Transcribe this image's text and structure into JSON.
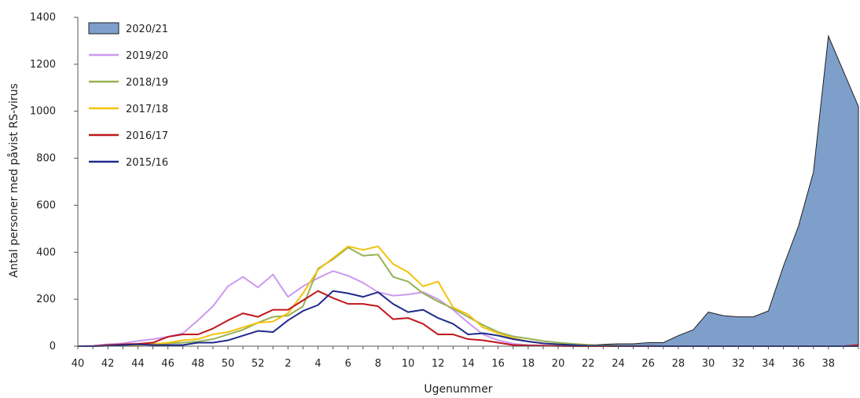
{
  "chart_data": {
    "type": "line",
    "xlabel": "Ugenummer",
    "ylabel": "Antal personer med påvist RS-virus",
    "ylim": [
      0,
      1400
    ],
    "yticks": [
      0,
      200,
      400,
      600,
      800,
      1000,
      1200,
      1400
    ],
    "grid": false,
    "legend_position": "top-left",
    "weeks": [
      40,
      41,
      42,
      43,
      44,
      45,
      46,
      47,
      48,
      49,
      50,
      51,
      52,
      53,
      1,
      2,
      3,
      4,
      5,
      6,
      7,
      8,
      9,
      10,
      11,
      12,
      13,
      14,
      15,
      16,
      17,
      18,
      19,
      20,
      21,
      22,
      23,
      24,
      25,
      26,
      27,
      28,
      29,
      30,
      31,
      32,
      33,
      34,
      35,
      36,
      37,
      38,
      39
    ],
    "x_tick_labels": [
      "40",
      "42",
      "44",
      "46",
      "48",
      "50",
      "52",
      "2",
      "4",
      "6",
      "8",
      "10",
      "12",
      "14",
      "16",
      "18",
      "20",
      "22",
      "24",
      "26",
      "28",
      "30",
      "32",
      "34",
      "36",
      "38"
    ],
    "series": [
      {
        "name": "2020/21",
        "kind": "area",
        "color": "#7f9fcb",
        "edge": "#1f1f1f",
        "values": [
          0,
          0,
          0,
          0,
          0,
          0,
          0,
          0,
          0,
          0,
          0,
          0,
          0,
          0,
          0,
          0,
          0,
          0,
          0,
          0,
          0,
          0,
          0,
          0,
          0,
          0,
          0,
          0,
          0,
          0,
          0,
          0,
          0,
          0,
          5,
          8,
          10,
          10,
          15,
          15,
          45,
          70,
          145,
          130,
          125,
          125,
          150,
          340,
          510,
          740,
          1320,
          1170,
          1020
        ]
      },
      {
        "name": "2019/20",
        "kind": "line",
        "color": "#cc99ee",
        "values": [
          0,
          2,
          8,
          12,
          22,
          30,
          40,
          55,
          110,
          170,
          255,
          295,
          250,
          305,
          210,
          255,
          290,
          320,
          300,
          270,
          230,
          215,
          220,
          230,
          200,
          155,
          100,
          50,
          25,
          10,
          5,
          3,
          2,
          1,
          1,
          0,
          0,
          0,
          0,
          0,
          0,
          0,
          0,
          0,
          0,
          0,
          0,
          0,
          0,
          0,
          0,
          0,
          0
        ]
      },
      {
        "name": "2018/19",
        "kind": "line",
        "color": "#96b254",
        "values": [
          0,
          0,
          3,
          5,
          8,
          10,
          12,
          15,
          20,
          30,
          50,
          70,
          100,
          125,
          130,
          170,
          330,
          370,
          420,
          385,
          390,
          295,
          275,
          225,
          190,
          160,
          125,
          90,
          60,
          42,
          32,
          22,
          15,
          10,
          6,
          4,
          2,
          1,
          1,
          0,
          0,
          0,
          0,
          0,
          0,
          0,
          0,
          0,
          0,
          0,
          0,
          0,
          0
        ]
      },
      {
        "name": "2017/18",
        "kind": "line",
        "color": "#f4c20d",
        "values": [
          0,
          0,
          2,
          3,
          5,
          8,
          15,
          25,
          30,
          50,
          60,
          80,
          100,
          105,
          140,
          225,
          325,
          375,
          425,
          410,
          425,
          350,
          315,
          255,
          275,
          165,
          135,
          80,
          55,
          35,
          20,
          12,
          8,
          5,
          3,
          2,
          1,
          1,
          0,
          0,
          0,
          0,
          0,
          0,
          0,
          0,
          0,
          0,
          0,
          0,
          0,
          0,
          0
        ]
      },
      {
        "name": "2016/17",
        "kind": "line",
        "color": "#c0161b",
        "values": [
          0,
          0,
          5,
          8,
          10,
          15,
          40,
          50,
          50,
          75,
          110,
          140,
          125,
          155,
          155,
          195,
          235,
          205,
          180,
          180,
          170,
          115,
          120,
          95,
          50,
          50,
          30,
          25,
          15,
          5,
          3,
          2,
          1,
          0,
          0,
          0,
          0,
          0,
          0,
          0,
          0,
          0,
          0,
          0,
          0,
          0,
          0,
          0,
          0,
          0,
          0,
          0,
          5
        ]
      },
      {
        "name": "2015/16",
        "kind": "line",
        "color": "#1f2a8c",
        "values": [
          0,
          0,
          2,
          5,
          8,
          5,
          5,
          5,
          15,
          15,
          25,
          45,
          65,
          60,
          110,
          150,
          175,
          235,
          225,
          210,
          230,
          180,
          145,
          155,
          120,
          95,
          50,
          55,
          45,
          30,
          20,
          12,
          8,
          5,
          2,
          2,
          1,
          1,
          1,
          0,
          0,
          0,
          0,
          0,
          0,
          0,
          0,
          0,
          0,
          0,
          0,
          0,
          0
        ]
      }
    ]
  }
}
